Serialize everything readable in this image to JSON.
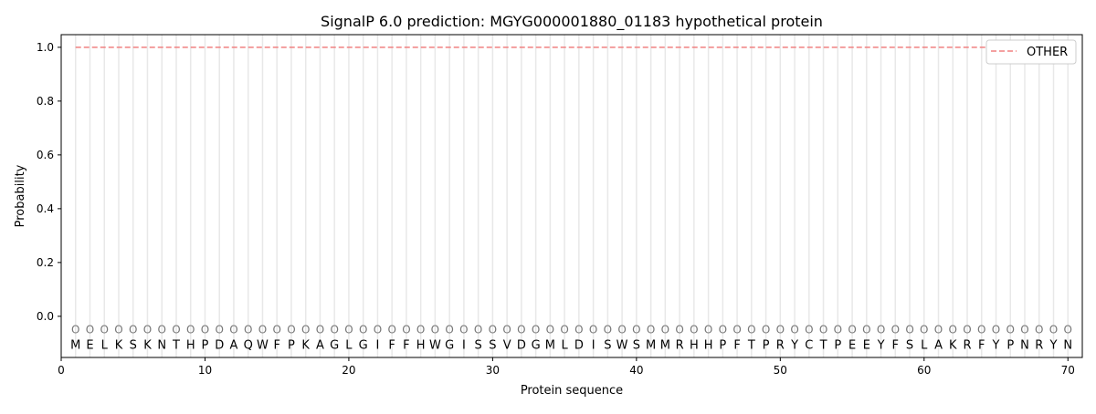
{
  "chart_data": {
    "type": "line",
    "title": "SignalP 6.0 prediction: MGYG000001880_01183 hypothetical protein",
    "xlabel": "Protein sequence",
    "ylabel": "Probability",
    "xlim": [
      0,
      71
    ],
    "ylim": [
      -0.153,
      1.047
    ],
    "xticks": [
      0,
      10,
      20,
      30,
      40,
      50,
      60,
      70
    ],
    "yticks": [
      "0.0",
      "0.2",
      "0.4",
      "0.6",
      "0.8",
      "1.0"
    ],
    "grid": "vertical lines at each residue",
    "legend_position": "top-right",
    "sequence": [
      "M",
      "E",
      "L",
      "K",
      "S",
      "K",
      "N",
      "T",
      "H",
      "P",
      "D",
      "A",
      "Q",
      "W",
      "F",
      "P",
      "K",
      "A",
      "G",
      "L",
      "G",
      "I",
      "F",
      "F",
      "H",
      "W",
      "G",
      "I",
      "S",
      "S",
      "V",
      "D",
      "G",
      "M",
      "L",
      "D",
      "I",
      "S",
      "W",
      "S",
      "M",
      "M",
      "R",
      "H",
      "H",
      "P",
      "F",
      "T",
      "P",
      "R",
      "Y",
      "C",
      "T",
      "P",
      "E",
      "E",
      "Y",
      "F",
      "S",
      "L",
      "A",
      "K",
      "R",
      "F",
      "Y",
      "P",
      "N",
      "R",
      "Y",
      "N"
    ],
    "region_label": "O",
    "series": [
      {
        "name": "OTHER",
        "color": "#f08080",
        "style": "dashed",
        "x_range": [
          1,
          70
        ],
        "value": 1.0
      }
    ]
  }
}
